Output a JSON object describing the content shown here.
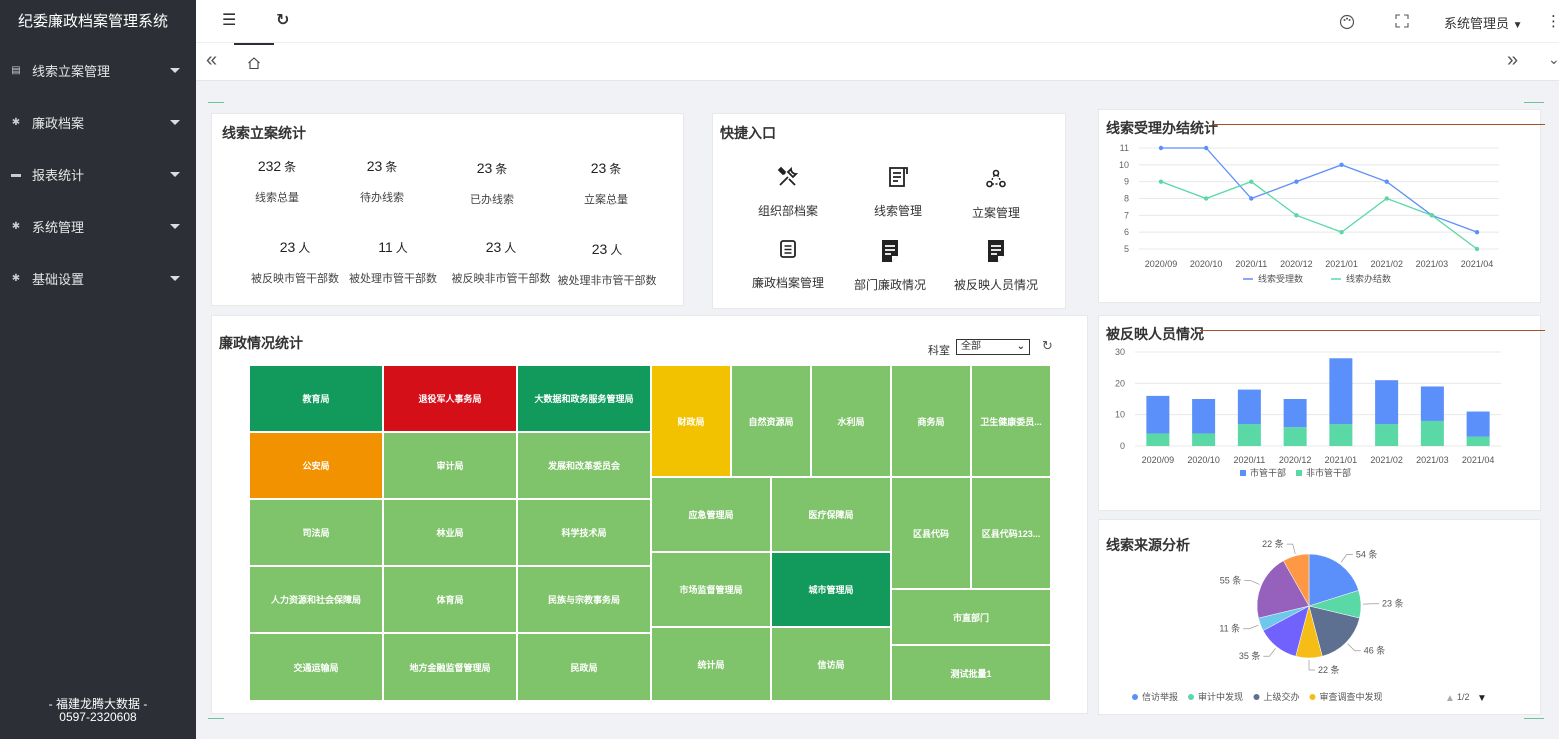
{
  "app": {
    "title": "纪委廉政档案管理系统"
  },
  "sidebar": {
    "items": [
      {
        "label": "线索立案管理",
        "icon": "clue-icon"
      },
      {
        "label": "廉政档案",
        "icon": "archive-icon"
      },
      {
        "label": "报表统计",
        "icon": "report-icon"
      },
      {
        "label": "系统管理",
        "icon": "system-icon"
      },
      {
        "label": "基础设置",
        "icon": "settings-icon"
      }
    ],
    "footer_line1": "- 福建龙腾大数据 -",
    "footer_line2": "0597-2320608"
  },
  "header": {
    "menu_icon": "☰",
    "refresh_icon": "↻",
    "user": "系统管理员",
    "user_arrow": "▼",
    "more": "⋮"
  },
  "tabs": {
    "left_arrows": "«",
    "right_arrows": "»",
    "home_icon": "home-icon"
  },
  "clue_stats": {
    "title": "线索立案统计",
    "items": [
      {
        "num": "232",
        "unit": "条",
        "label": "线索总量"
      },
      {
        "num": "23",
        "unit": "条",
        "label": "待办线索"
      },
      {
        "num": "23",
        "unit": "条",
        "label": "已办线索"
      },
      {
        "num": "23",
        "unit": "条",
        "label": "立案总量"
      },
      {
        "num": "23",
        "unit": "人",
        "label": "被反映市管干部数"
      },
      {
        "num": "11",
        "unit": "人",
        "label": "被处理市管干部数"
      },
      {
        "num": "23",
        "unit": "人",
        "label": "被反映非市管干部数"
      },
      {
        "num": "23",
        "unit": "人",
        "label": "被处理非市管干部数"
      }
    ]
  },
  "quick": {
    "title": "快捷入口",
    "items": [
      {
        "label": "组织部档案",
        "icon": "tools-icon"
      },
      {
        "label": "线索管理",
        "icon": "clue-doc-icon"
      },
      {
        "label": "立案管理",
        "icon": "nodes-icon"
      },
      {
        "label": "廉政档案管理",
        "icon": "file-icon"
      },
      {
        "label": "部门廉政情况",
        "icon": "doc-edit-icon"
      },
      {
        "label": "被反映人员情况",
        "icon": "doc-person-icon"
      }
    ]
  },
  "treemap": {
    "title": "廉政情况统计",
    "filter_label": "科室",
    "filter_value": "全部",
    "cells": [
      {
        "label": "教育局",
        "color": "#129a5c"
      },
      {
        "label": "退役军人事务局",
        "color": "#d50f17"
      },
      {
        "label": "大数据和政务服务管理局",
        "color": "#129a5c"
      },
      {
        "label": "财政局",
        "color": "#f2c100"
      },
      {
        "label": "自然资源局",
        "color": "#7fc36a"
      },
      {
        "label": "水利局",
        "color": "#7fc36a"
      },
      {
        "label": "商务局",
        "color": "#7fc36a"
      },
      {
        "label": "卫生健康委员...",
        "color": "#7fc36a"
      },
      {
        "label": "公安局",
        "color": "#f39200"
      },
      {
        "label": "审计局",
        "color": "#7fc36a"
      },
      {
        "label": "发展和改革委员会",
        "color": "#7fc36a"
      },
      {
        "label": "司法局",
        "color": "#7fc36a"
      },
      {
        "label": "林业局",
        "color": "#7fc36a"
      },
      {
        "label": "科学技术局",
        "color": "#7fc36a"
      },
      {
        "label": "应急管理局",
        "color": "#7fc36a"
      },
      {
        "label": "医疗保障局",
        "color": "#7fc36a"
      },
      {
        "label": "区县代码",
        "color": "#7fc36a"
      },
      {
        "label": "区县代码123...",
        "color": "#7fc36a"
      },
      {
        "label": "人力资源和社会保障局",
        "color": "#7fc36a"
      },
      {
        "label": "体育局",
        "color": "#7fc36a"
      },
      {
        "label": "民族与宗教事务局",
        "color": "#7fc36a"
      },
      {
        "label": "市场监督管理局",
        "color": "#7fc36a"
      },
      {
        "label": "城市管理局",
        "color": "#129a5c"
      },
      {
        "label": "市直部门",
        "color": "#7fc36a"
      },
      {
        "label": "交通运输局",
        "color": "#7fc36a"
      },
      {
        "label": "地方金融监督管理局",
        "color": "#7fc36a"
      },
      {
        "label": "民政局",
        "color": "#7fc36a"
      },
      {
        "label": "统计局",
        "color": "#7fc36a"
      },
      {
        "label": "信访局",
        "color": "#7fc36a"
      },
      {
        "label": "测试批量1",
        "color": "#7fc36a"
      }
    ]
  },
  "chart_data": [
    {
      "type": "line",
      "title": "线索受理办结统计",
      "categories": [
        "2020/09",
        "2020/10",
        "2020/11",
        "2020/12",
        "2021/01",
        "2021/02",
        "2021/03",
        "2021/04"
      ],
      "ylim": [
        5,
        11
      ],
      "yticks": [
        "5",
        "6",
        "7",
        "8",
        "9",
        "10",
        "11"
      ],
      "series": [
        {
          "name": "线索受理数",
          "values": [
            11,
            11,
            8,
            9,
            10,
            9,
            7,
            6
          ],
          "color": "#5b8ff9"
        },
        {
          "name": "线索办结数",
          "values": [
            9,
            8,
            9,
            7,
            6,
            8,
            7,
            5
          ],
          "color": "#5ad8a6"
        }
      ],
      "legend": "bottom"
    },
    {
      "type": "bar",
      "stacked": true,
      "title": "被反映人员情况",
      "categories": [
        "2020/09",
        "2020/10",
        "2020/11",
        "2020/12",
        "2021/01",
        "2021/02",
        "2021/03",
        "2021/04"
      ],
      "ylim": [
        0,
        30
      ],
      "yticks": [
        "0",
        "10",
        "20",
        "30"
      ],
      "series": [
        {
          "name": "非市管干部",
          "values": [
            4,
            4,
            7,
            6,
            7,
            7,
            8,
            3
          ],
          "color": "#5ad8a6"
        },
        {
          "name": "市管干部",
          "values": [
            12,
            11,
            11,
            9,
            21,
            14,
            11,
            8
          ],
          "color": "#5b8ff9"
        }
      ],
      "legend_order": [
        "市管干部",
        "非市管干部"
      ],
      "legend": "bottom"
    },
    {
      "type": "pie",
      "title": "线索来源分析",
      "unit": "条",
      "slices": [
        {
          "name": "信访举报",
          "value": 54,
          "color": "#5b8ff9"
        },
        {
          "name": "审计中发现",
          "value": 23,
          "color": "#5ad8a6"
        },
        {
          "name": "上级交办",
          "value": 46,
          "color": "#5d7092"
        },
        {
          "name": "审查调查中发现",
          "value": 22,
          "color": "#f6bd16"
        },
        {
          "name": "",
          "value": 35,
          "color": "#7262fd"
        },
        {
          "name": "",
          "value": 11,
          "color": "#6dc8ec"
        },
        {
          "name": "",
          "value": 55,
          "color": "#9661bc"
        },
        {
          "name": "",
          "value": 22,
          "color": "#ff9845"
        }
      ],
      "legend_visible": [
        "信访举报",
        "审计中发现",
        "上级交办",
        "审查调查中发现"
      ],
      "legend_page": "1/2",
      "legend": "bottom"
    }
  ]
}
